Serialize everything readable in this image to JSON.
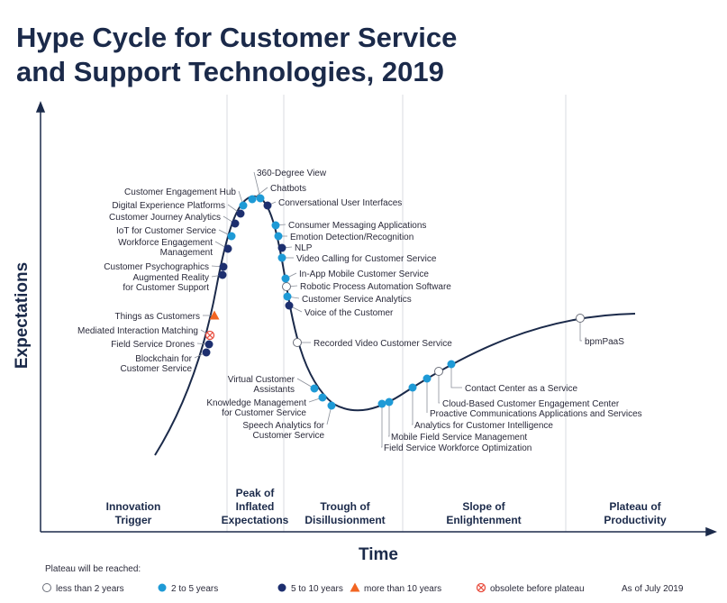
{
  "header": {
    "title": [
      "Hype Cycle for Customer Service",
      "and Support Technologies, 2019"
    ]
  },
  "axes": {
    "y_label": "Expectations",
    "x_label": "Time"
  },
  "phases": [
    [
      "Innovation",
      "Trigger"
    ],
    [
      "Peak of",
      "Inflated",
      "Expectations"
    ],
    [
      "Trough of",
      "Disillusionment"
    ],
    [
      "Slope of",
      "Enlightenment"
    ],
    [
      "Plateau of",
      "Productivity"
    ]
  ],
  "legend": {
    "heading": "Plateau will be reached:",
    "as_of": "As of July 2019",
    "items": [
      {
        "label": "less than 2 years",
        "technologies": [
          [
            "Robotic Process Automation Software"
          ],
          [
            "Recorded Video Customer Service"
          ],
          [
            "bpmPaaS"
          ],
          [
            "Cloud-Based Customer Engagement Center"
          ]
        ]
      },
      {
        "label": "2 to 5 years",
        "technologies": [
          [
            "360-Degree View"
          ],
          [
            "Chatbots"
          ],
          [
            "Customer Engagement Hub"
          ],
          [
            "Consumer Messaging Applications"
          ],
          [
            "IoT for Customer Service"
          ],
          [
            "Emotion Detection/Recognition"
          ],
          [
            "Video Calling for Customer Service"
          ],
          [
            "In-App Mobile Customer Service"
          ],
          [
            "Customer Service Analytics"
          ],
          [
            "Virtual Customer",
            "Assistants"
          ],
          [
            "Knowledge Management",
            "for Customer Service"
          ],
          [
            "Speech Analytics for",
            "Customer Service"
          ],
          [
            "Contact Center as a Service"
          ],
          [
            "Proactive Communications Applications and Services"
          ],
          [
            "Analytics for Customer Intelligence"
          ],
          [
            "Mobile Field Service Management"
          ],
          [
            "Field Service Workforce Optimization"
          ]
        ]
      },
      {
        "label": "5 to 10 years",
        "technologies": [
          [
            "Conversational User Interfaces"
          ],
          [
            "Digital Experience Platforms"
          ],
          [
            "Customer Journey Analytics"
          ],
          [
            "Workforce Engagement",
            "Management"
          ],
          [
            "NLP"
          ],
          [
            "Customer Psychographics"
          ],
          [
            "Augmented Reality",
            "for Customer Support"
          ],
          [
            "Voice of the Customer"
          ],
          [
            "Field Service Drones"
          ],
          [
            "Blockchain for",
            "Customer Service"
          ]
        ]
      },
      {
        "label": "more than 10 years",
        "technologies": [
          [
            "Things as Customers"
          ]
        ]
      },
      {
        "label": "obsolete before plateau",
        "technologies": [
          [
            "Mediated Interaction Matching"
          ]
        ]
      }
    ]
  }
}
